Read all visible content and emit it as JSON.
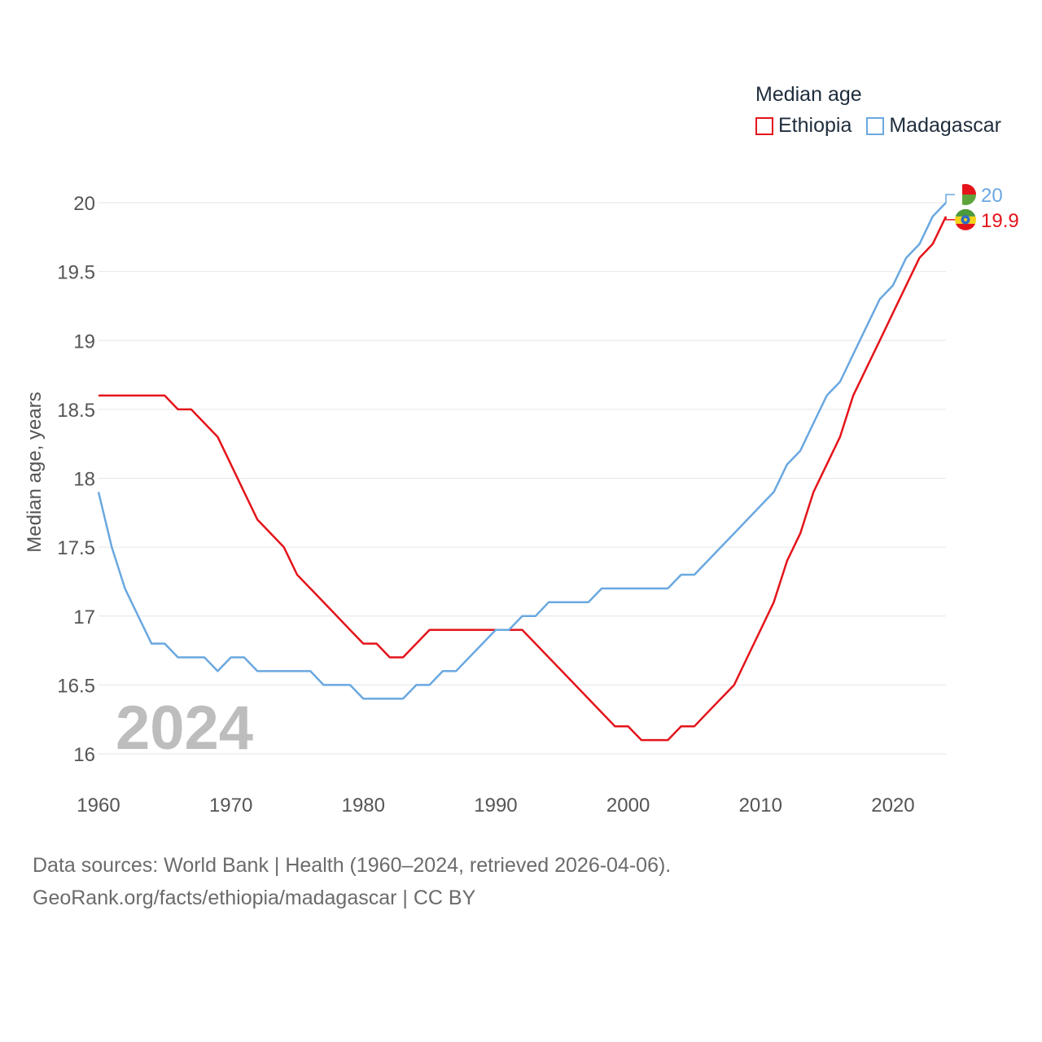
{
  "legend": {
    "title": "Median age",
    "series": [
      {
        "name": "Ethiopia",
        "color": "#e4141a"
      },
      {
        "name": "Madagascar",
        "color": "#6aa8e0"
      }
    ]
  },
  "footer": {
    "line1": "Data sources: World Bank | Health (1960–2024, retrieved 2026-04-06).",
    "line2": "GeoRank.org/facts/ethiopia/madagascar | CC BY"
  },
  "chart_data": {
    "type": "line",
    "title": "Median age",
    "ylabel": "Median age, years",
    "xlabel": "",
    "year_watermark": "2024",
    "xlim": [
      1960,
      2024
    ],
    "ylim": [
      16,
      20
    ],
    "x_ticks": [
      1960,
      1970,
      1980,
      1990,
      2000,
      2010,
      2020
    ],
    "y_ticks": [
      16,
      16.5,
      17,
      17.5,
      18,
      18.5,
      19,
      19.5,
      20
    ],
    "x": [
      1960,
      1961,
      1962,
      1963,
      1964,
      1965,
      1966,
      1967,
      1968,
      1969,
      1970,
      1971,
      1972,
      1973,
      1974,
      1975,
      1976,
      1977,
      1978,
      1979,
      1980,
      1981,
      1982,
      1983,
      1984,
      1985,
      1986,
      1987,
      1988,
      1989,
      1990,
      1991,
      1992,
      1993,
      1994,
      1995,
      1996,
      1997,
      1998,
      1999,
      2000,
      2001,
      2002,
      2003,
      2004,
      2005,
      2006,
      2007,
      2008,
      2009,
      2010,
      2011,
      2012,
      2013,
      2014,
      2015,
      2016,
      2017,
      2018,
      2019,
      2020,
      2021,
      2022,
      2023,
      2024
    ],
    "series": [
      {
        "name": "Ethiopia",
        "color": "#e4141a",
        "end_label": "19.9",
        "values": [
          18.6,
          18.6,
          18.6,
          18.6,
          18.6,
          18.6,
          18.5,
          18.5,
          18.4,
          18.3,
          18.1,
          17.9,
          17.7,
          17.6,
          17.5,
          17.3,
          17.2,
          17.1,
          17.0,
          16.9,
          16.8,
          16.8,
          16.7,
          16.7,
          16.8,
          16.9,
          16.9,
          16.9,
          16.9,
          16.9,
          16.9,
          16.9,
          16.9,
          16.8,
          16.7,
          16.6,
          16.5,
          16.4,
          16.3,
          16.2,
          16.2,
          16.1,
          16.1,
          16.1,
          16.2,
          16.2,
          16.3,
          16.4,
          16.5,
          16.7,
          16.9,
          17.1,
          17.4,
          17.6,
          17.9,
          18.1,
          18.3,
          18.6,
          18.8,
          19.0,
          19.2,
          19.4,
          19.6,
          19.7,
          19.9
        ]
      },
      {
        "name": "Madagascar",
        "color": "#6aa8e0",
        "end_label": "20",
        "values": [
          17.9,
          17.5,
          17.2,
          17.0,
          16.8,
          16.8,
          16.7,
          16.7,
          16.7,
          16.6,
          16.7,
          16.7,
          16.6,
          16.6,
          16.6,
          16.6,
          16.6,
          16.5,
          16.5,
          16.5,
          16.4,
          16.4,
          16.4,
          16.4,
          16.5,
          16.5,
          16.6,
          16.6,
          16.7,
          16.8,
          16.9,
          16.9,
          17.0,
          17.0,
          17.1,
          17.1,
          17.1,
          17.1,
          17.2,
          17.2,
          17.2,
          17.2,
          17.2,
          17.2,
          17.3,
          17.3,
          17.4,
          17.5,
          17.6,
          17.7,
          17.8,
          17.9,
          18.1,
          18.2,
          18.4,
          18.6,
          18.7,
          18.9,
          19.1,
          19.3,
          19.4,
          19.6,
          19.7,
          19.9,
          20.0
        ]
      }
    ]
  }
}
